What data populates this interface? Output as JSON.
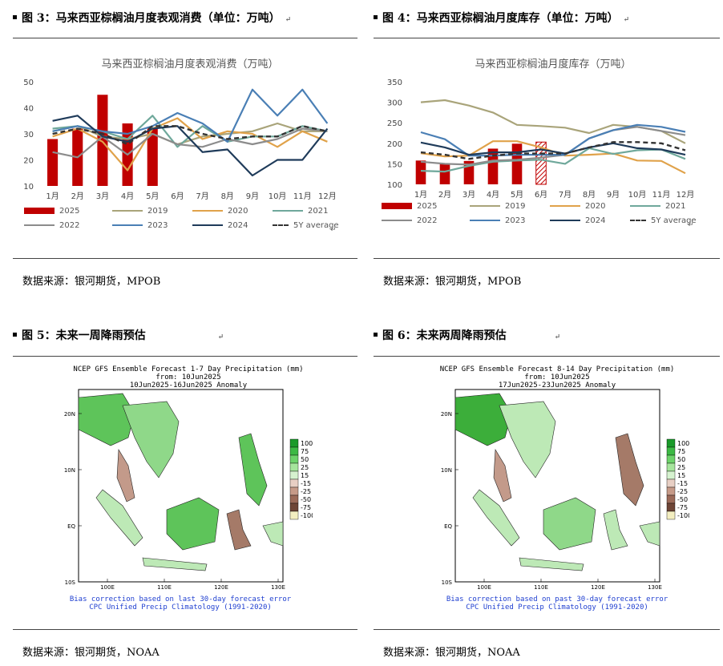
{
  "fig3": {
    "title": "图 3：马来西亚棕榈油月度表观消费（单位：万吨）",
    "source": "数据来源：银河期货，MPOB",
    "chart_data": {
      "type": "bar+line",
      "title": "马来西亚棕榈油月度表观消费（万吨）",
      "categories": [
        "1月",
        "2月",
        "3月",
        "4月",
        "5月",
        "6月",
        "7月",
        "8月",
        "9月",
        "10月",
        "11月",
        "12月"
      ],
      "ylim": [
        10,
        50
      ],
      "yticks": [
        10,
        20,
        30,
        40,
        50
      ],
      "bar_series": {
        "name": "2025",
        "values": [
          28,
          32,
          45,
          34,
          32
        ],
        "color": "#c00000"
      },
      "series": [
        {
          "name": "2019",
          "color": "#a9a47a",
          "values": [
            31,
            33,
            29,
            28,
            30,
            26,
            29,
            30,
            31,
            34,
            31,
            31
          ]
        },
        {
          "name": "2020",
          "color": "#e0a24a",
          "values": [
            29,
            32,
            27,
            16,
            32,
            36,
            28,
            31,
            30,
            25,
            31,
            27
          ]
        },
        {
          "name": "2021",
          "color": "#6fa89b",
          "values": [
            32,
            33,
            31,
            28,
            37,
            25,
            33,
            27,
            29,
            29,
            33,
            31
          ]
        },
        {
          "name": "2022",
          "color": "#8c8c8c",
          "values": [
            23,
            21,
            29,
            22,
            30,
            26,
            25,
            28,
            26,
            28,
            32,
            31
          ]
        },
        {
          "name": "2023",
          "color": "#4a7fb5",
          "values": [
            31,
            33,
            31,
            30,
            33,
            38,
            34,
            27,
            47,
            37,
            47,
            34
          ]
        },
        {
          "name": "2024",
          "color": "#1f3b5a",
          "values": [
            35,
            37,
            29,
            27,
            32,
            33,
            23,
            24,
            14,
            20,
            20,
            32
          ]
        },
        {
          "name": "5Y average",
          "color": "#333333",
          "dashed": true,
          "values": [
            30,
            32,
            30,
            26,
            33,
            33,
            30,
            28,
            29,
            29,
            33,
            31
          ]
        }
      ]
    }
  },
  "fig4": {
    "title": "图 4：马来西亚棕榈油月度库存（单位：万吨）",
    "source": "数据来源：银河期货，MPOB",
    "chart_data": {
      "type": "bar+line",
      "title": "马来西亚棕榈油月度库存（万吨）",
      "categories": [
        "1月",
        "2月",
        "3月",
        "4月",
        "5月",
        "6月",
        "7月",
        "8月",
        "9月",
        "10月",
        "11月",
        "12月"
      ],
      "ylim": [
        100,
        350
      ],
      "yticks": [
        100,
        150,
        200,
        250,
        300,
        350
      ],
      "bar_series": {
        "name": "2025",
        "values": [
          158,
          150,
          157,
          187,
          199,
          203
        ],
        "color": "#c00000",
        "hatched_index": 5
      },
      "series": [
        {
          "name": "2019",
          "color": "#a9a47a",
          "values": [
            300,
            305,
            292,
            275,
            245,
            242,
            238,
            225,
            245,
            240,
            230,
            200
          ]
        },
        {
          "name": "2020",
          "color": "#e0a24a",
          "values": [
            176,
            168,
            170,
            205,
            205,
            190,
            170,
            172,
            175,
            158,
            157,
            127
          ]
        },
        {
          "name": "2021",
          "color": "#6fa89b",
          "values": [
            133,
            131,
            145,
            155,
            158,
            160,
            150,
            188,
            174,
            183,
            185,
            162
          ]
        },
        {
          "name": "2022",
          "color": "#8c8c8c",
          "values": [
            155,
            150,
            148,
            158,
            160,
            165,
            172,
            212,
            232,
            240,
            230,
            220
          ]
        },
        {
          "name": "2023",
          "color": "#4a7fb5",
          "values": [
            227,
            210,
            170,
            170,
            172,
            172,
            172,
            212,
            232,
            245,
            240,
            228
          ]
        },
        {
          "name": "2024",
          "color": "#1f3b5a",
          "values": [
            202,
            190,
            172,
            178,
            178,
            185,
            175,
            190,
            200,
            188,
            185,
            172
          ]
        },
        {
          "name": "5Y average",
          "color": "#333333",
          "dashed": true,
          "values": [
            178,
            172,
            162,
            170,
            175,
            175,
            175,
            190,
            203,
            203,
            200,
            183
          ]
        }
      ]
    }
  },
  "legend_labels": [
    "2025",
    "2019",
    "2020",
    "2021",
    "2022",
    "2023",
    "2024",
    "5Y average"
  ],
  "fig5": {
    "title": "图 5：未来一周降雨预估",
    "source": "数据来源：银河期货，NOAA",
    "map_title_lines": "NCEP GFS Ensemble Forecast 1-7 Day Precipitation (mm)\nfrom: 10Jun2025\n10Jun2025-16Jun2025 Anomaly",
    "map_footer_1": "Bias correction based on last 30-day forecast error",
    "map_footer_2": "CPC Unified Precip Climatology (1991-2020)"
  },
  "fig6": {
    "title": "图 6：未来两周降雨预估",
    "source": "数据来源：银河期货，NOAA",
    "map_title_lines": "NCEP GFS Ensemble Forecast 8-14 Day Precipitation (mm)\nfrom: 10Jun2025\n17Jun2025-23Jun2025 Anomaly",
    "map_footer_1": "Bias correction based on past 30-day forecast error",
    "map_footer_2": "CPC Unified Precip Climatology (1991-2020)"
  },
  "map_axes": {
    "lat_labels": [
      "20N",
      "10N",
      "EQ",
      "10S"
    ],
    "lon_labels": [
      "100E",
      "110E",
      "120E",
      "130E"
    ]
  },
  "colorbar": {
    "labels": [
      "100",
      "75",
      "50",
      "25",
      "15",
      "-15",
      "-25",
      "-50",
      "-75",
      "-100"
    ],
    "colors": [
      "#1a9a2a",
      "#3cb944",
      "#6dd36a",
      "#a6e59c",
      "#d6f2cf",
      "#e8cfc4",
      "#c69a88",
      "#9b6a58",
      "#6e4536",
      "#f3eec0"
    ]
  }
}
